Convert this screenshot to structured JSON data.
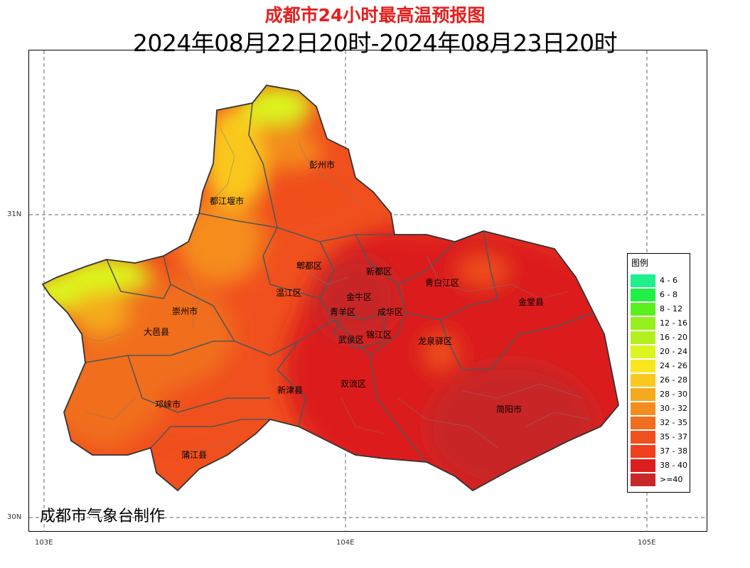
{
  "title": "成都市24小时最高温预报图",
  "subtitle": "2024年08月22日20时-2024年08月23日20时",
  "credit": "成都市气象台制作",
  "axes": {
    "lon_ticks": [
      "103E",
      "104E",
      "105E"
    ],
    "lat_ticks": [
      "31N",
      "30N"
    ]
  },
  "legend": {
    "title": "图例",
    "items": [
      {
        "label": "4 - 6",
        "color": "#1ef08c"
      },
      {
        "label": "6 - 8",
        "color": "#1ef046"
      },
      {
        "label": "8 - 12",
        "color": "#5af01e"
      },
      {
        "label": "12 - 16",
        "color": "#96f01e"
      },
      {
        "label": "16 - 20",
        "color": "#b4f01e"
      },
      {
        "label": "20 - 24",
        "color": "#dcf51e"
      },
      {
        "label": "24 - 26",
        "color": "#fae61e"
      },
      {
        "label": "26 - 28",
        "color": "#fac81e"
      },
      {
        "label": "28 - 30",
        "color": "#f5aa1e"
      },
      {
        "label": "30 - 32",
        "color": "#f58c1e"
      },
      {
        "label": "32 - 35",
        "color": "#f06e1e"
      },
      {
        "label": "35 - 37",
        "color": "#f0501e"
      },
      {
        "label": "37 - 38",
        "color": "#f0401e"
      },
      {
        "label": "38 - 40",
        "color": "#dc1e1e"
      },
      {
        "label": ">=40",
        "color": "#c82828"
      }
    ]
  },
  "districts": [
    {
      "name": "彭州市"
    },
    {
      "name": "都江堰市"
    },
    {
      "name": "郫都区"
    },
    {
      "name": "新都区"
    },
    {
      "name": "青白江区"
    },
    {
      "name": "温江区"
    },
    {
      "name": "金牛区"
    },
    {
      "name": "青羊区"
    },
    {
      "name": "成华区"
    },
    {
      "name": "金堂县"
    },
    {
      "name": "崇州市"
    },
    {
      "name": "大邑县"
    },
    {
      "name": "武侯区"
    },
    {
      "name": "锦江区"
    },
    {
      "name": "龙泉驿区"
    },
    {
      "name": "新津县"
    },
    {
      "name": "双流区"
    },
    {
      "name": "邛崃市"
    },
    {
      "name": "简阳市"
    },
    {
      "name": "蒲江县"
    }
  ]
}
